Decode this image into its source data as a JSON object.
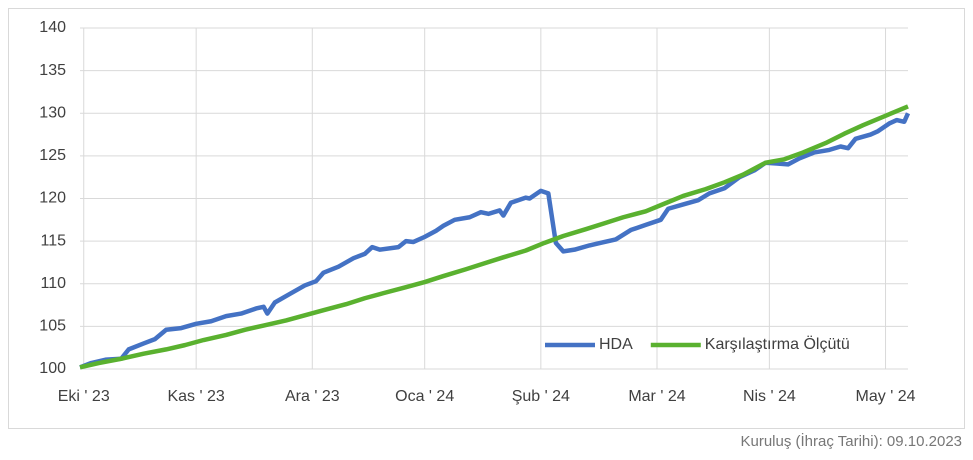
{
  "chart_data": {
    "type": "line",
    "footnote": "Kuruluş (İhraç Tarihi): 09.10.2023",
    "xlim": [
      0,
      221
    ],
    "xticks": [
      {
        "value": 1,
        "label": "Eki ' 23"
      },
      {
        "value": 31,
        "label": "Kas ' 23"
      },
      {
        "value": 62,
        "label": "Ara ' 23"
      },
      {
        "value": 92,
        "label": "Oca ' 24"
      },
      {
        "value": 123,
        "label": "Şub ' 24"
      },
      {
        "value": 154,
        "label": "Mar ' 24"
      },
      {
        "value": 184,
        "label": "Nis ' 24"
      },
      {
        "value": 215,
        "label": "May ' 24"
      }
    ],
    "ylim": [
      100,
      140
    ],
    "yticks": [
      100,
      105,
      110,
      115,
      120,
      125,
      130,
      135,
      140
    ],
    "grid": true,
    "legend": "lower right",
    "series": [
      {
        "name": "HDA",
        "color": "#4472c4",
        "x": [
          0,
          3,
          7,
          11,
          13,
          17,
          20,
          23,
          27,
          31,
          35,
          39,
          43,
          47,
          49,
          50,
          52,
          56,
          60,
          63,
          65,
          69,
          73,
          76,
          78,
          80,
          85,
          87,
          89,
          92,
          95,
          97,
          100,
          104,
          107,
          109,
          112,
          113,
          115,
          119,
          120,
          123,
          125,
          127,
          129,
          132,
          136,
          139,
          143,
          147,
          151,
          155,
          157,
          161,
          165,
          168,
          172,
          176,
          180,
          183,
          186,
          189,
          192,
          196,
          200,
          203,
          205,
          207,
          211,
          213,
          216,
          218,
          220,
          221
        ],
        "values": [
          100.2,
          100.7,
          101.1,
          101.2,
          102.3,
          103,
          103.5,
          104.6,
          104.8,
          105.3,
          105.6,
          106.2,
          106.5,
          107.1,
          107.3,
          106.5,
          107.8,
          108.8,
          109.8,
          110.3,
          111.3,
          112,
          113,
          113.5,
          114.3,
          114,
          114.3,
          115,
          114.9,
          115.5,
          116.2,
          116.8,
          117.5,
          117.8,
          118.4,
          118.2,
          118.6,
          118,
          119.5,
          120.1,
          120,
          120.9,
          120.6,
          114.8,
          113.8,
          114,
          114.5,
          114.8,
          115.2,
          116.3,
          116.9,
          117.5,
          118.8,
          119.3,
          119.8,
          120.6,
          121.2,
          122.5,
          123.3,
          124.2,
          124.1,
          124,
          124.7,
          125.4,
          125.7,
          126.1,
          125.9,
          127,
          127.5,
          127.9,
          128.8,
          129.2,
          129,
          130
        ]
      },
      {
        "name": "Karşılaştırma Ölçütü",
        "color": "#5ab12f",
        "x": [
          0,
          5,
          11,
          17,
          23,
          28,
          33,
          39,
          44,
          49,
          55,
          60,
          65,
          71,
          76,
          81,
          87,
          92,
          97,
          103,
          108,
          113,
          119,
          124,
          129,
          135,
          140,
          145,
          151,
          156,
          161,
          167,
          172,
          177,
          183,
          188,
          193,
          199,
          204,
          209,
          215,
          221
        ],
        "values": [
          100.2,
          100.7,
          101.2,
          101.8,
          102.3,
          102.8,
          103.4,
          104,
          104.6,
          105.1,
          105.7,
          106.3,
          106.9,
          107.6,
          108.3,
          108.9,
          109.6,
          110.2,
          110.9,
          111.7,
          112.4,
          113.1,
          113.9,
          114.8,
          115.6,
          116.4,
          117.1,
          117.8,
          118.5,
          119.4,
          120.3,
          121.1,
          121.9,
          122.8,
          124.2,
          124.6,
          125.4,
          126.5,
          127.6,
          128.6,
          129.7,
          130.8
        ]
      }
    ]
  }
}
